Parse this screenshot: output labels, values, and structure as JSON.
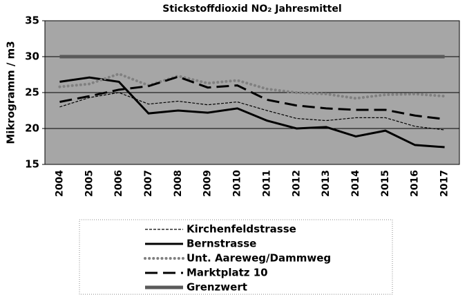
{
  "chart_data": {
    "type": "line",
    "title": "Stickstoffdioxid NO₂ Jahresmittel",
    "y_label": "Mikrogramm / m3",
    "categories": [
      "2004",
      "2005",
      "2006",
      "2007",
      "2008",
      "2009",
      "2010",
      "2011",
      "2012",
      "2013",
      "2014",
      "2015",
      "2016",
      "2017"
    ],
    "series": [
      {
        "name": "Kirchenfeldstrasse",
        "color": "#000000",
        "style": "dashed-thin",
        "values": [
          23.0,
          24.3,
          25.0,
          23.4,
          23.8,
          23.3,
          23.7,
          22.5,
          21.4,
          21.1,
          21.5,
          21.5,
          20.3,
          19.8
        ]
      },
      {
        "name": "Bernstrasse",
        "color": "#000000",
        "style": "solid",
        "values": [
          26.5,
          27.1,
          26.5,
          22.1,
          22.5,
          22.2,
          22.8,
          21.1,
          20.0,
          20.2,
          18.9,
          19.7,
          17.7,
          17.4
        ]
      },
      {
        "name": "Unt. Aareweg/Dammweg",
        "color": "#808080",
        "style": "dotted",
        "values": [
          25.8,
          26.2,
          27.6,
          26.0,
          27.3,
          26.3,
          26.7,
          25.5,
          25.0,
          24.8,
          24.2,
          24.7,
          24.8,
          24.5
        ]
      },
      {
        "name": "Marktplatz 10",
        "color": "#000000",
        "style": "long-dash",
        "values": [
          23.7,
          24.5,
          25.4,
          25.9,
          27.2,
          25.7,
          26.0,
          24.0,
          23.2,
          22.8,
          22.6,
          22.6,
          21.8,
          21.3
        ]
      },
      {
        "name": "Grenzwert",
        "color": "#5a5a5a",
        "style": "thick",
        "values": [
          30,
          30,
          30,
          30,
          30,
          30,
          30,
          30,
          30,
          30,
          30,
          30,
          30,
          30
        ]
      }
    ],
    "ylim": [
      15,
      35
    ],
    "yticks": [
      15,
      20,
      25,
      30,
      35
    ],
    "grid": true,
    "background": "#a6a6a6"
  }
}
